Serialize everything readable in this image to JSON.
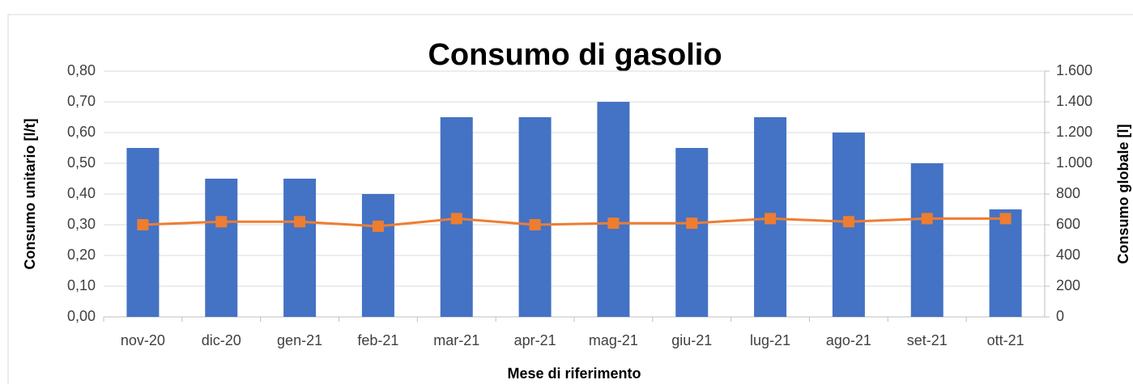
{
  "chart_data": {
    "type": "bar",
    "title": "Consumo di gasolio",
    "x_label": "Mese di riferimento",
    "y_label": "Consumo unitario [l/t]",
    "y2_label": "Consumo globale [l]",
    "categories": [
      "nov-20",
      "dic-20",
      "gen-21",
      "feb-21",
      "mar-21",
      "apr-21",
      "mag-21",
      "giu-21",
      "lug-21",
      "ago-21",
      "set-21",
      "ott-21"
    ],
    "series": [
      {
        "type": "bar",
        "axis": "y2",
        "color": "#4472c4",
        "values": [
          1100,
          900,
          900,
          800,
          1300,
          1300,
          1400,
          1100,
          1300,
          1200,
          1000,
          700
        ]
      },
      {
        "type": "line",
        "axis": "y",
        "color": "#ed7d31",
        "values": [
          0.3,
          0.31,
          0.31,
          0.295,
          0.32,
          0.3,
          0.305,
          0.305,
          0.32,
          0.31,
          0.32,
          0.32
        ]
      }
    ],
    "ylim": [
      0,
      0.8
    ],
    "yticks": [
      {
        "value": 0,
        "label": "0,00"
      },
      {
        "value": 0.1,
        "label": "0,10"
      },
      {
        "value": 0.2,
        "label": "0,20"
      },
      {
        "value": 0.3,
        "label": "0,30"
      },
      {
        "value": 0.4,
        "label": "0,40"
      },
      {
        "value": 0.5,
        "label": "0,50"
      },
      {
        "value": 0.6,
        "label": "0,60"
      },
      {
        "value": 0.7,
        "label": "0,70"
      },
      {
        "value": 0.8,
        "label": "0,80"
      }
    ],
    "y2lim": [
      0,
      1600
    ],
    "y2ticks": [
      0,
      200,
      400,
      600,
      800,
      {
        "value": 1000,
        "label": "1.000"
      },
      {
        "value": 1200,
        "label": "1.200"
      },
      {
        "value": 1400,
        "label": "1.400"
      },
      {
        "value": 1600,
        "label": "1.600"
      }
    ],
    "grid": true
  }
}
